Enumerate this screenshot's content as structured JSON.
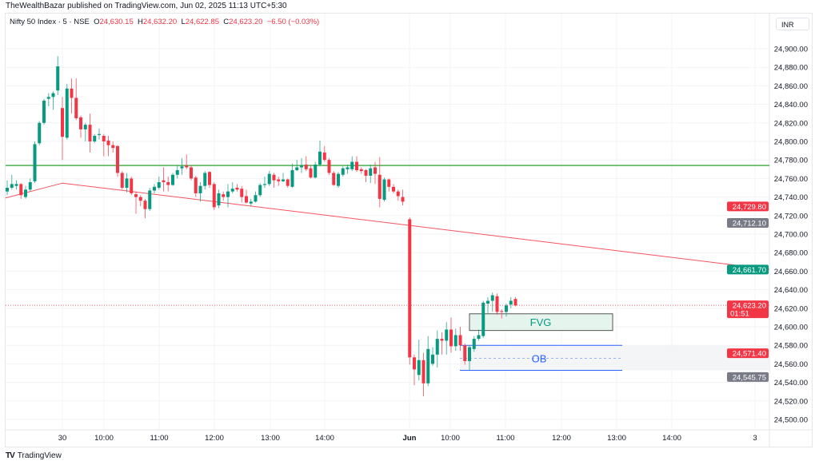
{
  "header": {
    "published": "TheWealthBazar published on TradingView.com, Jun 02, 2025 11:13 UTC+5:30"
  },
  "legend": {
    "symbol": "Nifty 50 Index · 5 · NSE",
    "o_label": "O",
    "o": "24,630.15",
    "h_label": "H",
    "h": "24,632.20",
    "l_label": "L",
    "l": "24,622.85",
    "c_label": "C",
    "c": "24,623.20",
    "change": "−6.50 (−0.03%)"
  },
  "currency": "INR",
  "footer": {
    "brand": "TradingView",
    "logo": "TV"
  },
  "colors": {
    "up": "#089981",
    "down": "#f23645",
    "support_line": "#4caf50",
    "trend_line": "#f7525f",
    "ob": "#2962ff",
    "fvg_text": "#089981"
  },
  "chart_data": {
    "type": "candlestick",
    "title": "Nifty 50 Index · 5 · NSE",
    "ylim": [
      24490,
      24915
    ],
    "y_ticks": [
      "24,500.00",
      "24,520.00",
      "24,540.00",
      "24,560.00",
      "24,580.00",
      "24,600.00",
      "24,620.00",
      "24,640.00",
      "24,660.00",
      "24,680.00",
      "24,700.00",
      "24,720.00",
      "24,740.00",
      "24,760.00",
      "24,780.00",
      "24,800.00",
      "24,820.00",
      "24,840.00",
      "24,860.00",
      "24,880.00",
      "24,900.00"
    ],
    "x_ticks": [
      "30",
      "10:00",
      "11:00",
      "12:00",
      "13:00",
      "14:00",
      "Jun",
      "10:00",
      "11:00",
      "12:00",
      "13:00",
      "14:00",
      "3"
    ],
    "grid": true,
    "candles_ohlc": [
      [
        24746,
        24758,
        24742,
        24750
      ],
      [
        24750,
        24764,
        24748,
        24754
      ],
      [
        24752,
        24758,
        24748,
        24754
      ],
      [
        24754,
        24755,
        24738,
        24742
      ],
      [
        24740,
        24752,
        24738,
        24748
      ],
      [
        24748,
        24760,
        24746,
        24756
      ],
      [
        24757,
        24800,
        24755,
        24797
      ],
      [
        24798,
        24822,
        24796,
        24820
      ],
      [
        24820,
        24846,
        24818,
        24844
      ],
      [
        24846,
        24852,
        24838,
        24848
      ],
      [
        24848,
        24854,
        24834,
        24852
      ],
      [
        24855,
        24892,
        24850,
        24881
      ],
      [
        24836,
        24848,
        24780,
        24805
      ],
      [
        24804,
        24862,
        24802,
        24857
      ],
      [
        24857,
        24868,
        24830,
        24847
      ],
      [
        24847,
        24868,
        24823,
        24825
      ],
      [
        24826,
        24828,
        24804,
        24813
      ],
      [
        24813,
        24820,
        24800,
        24818
      ],
      [
        24818,
        24830,
        24788,
        24800
      ],
      [
        24800,
        24808,
        24798,
        24806
      ],
      [
        24807,
        24814,
        24802,
        24808
      ],
      [
        24806,
        24808,
        24784,
        24800
      ],
      [
        24801,
        24806,
        24784,
        24796
      ],
      [
        24796,
        24800,
        24788,
        24793
      ],
      [
        24795,
        24796,
        24762,
        24766
      ],
      [
        24766,
        24768,
        24748,
        24750
      ],
      [
        24750,
        24766,
        24745,
        24760
      ],
      [
        24760,
        24762,
        24742,
        24744
      ],
      [
        24743,
        24746,
        24722,
        24740
      ],
      [
        24740,
        24742,
        24730,
        24736
      ],
      [
        24736,
        24738,
        24717,
        24727
      ],
      [
        24727,
        24750,
        24725,
        24747
      ],
      [
        24747,
        24754,
        24744,
        24751
      ],
      [
        24750,
        24762,
        24748,
        24756
      ],
      [
        24758,
        24772,
        24746,
        24756
      ],
      [
        24756,
        24762,
        24746,
        24753
      ],
      [
        24753,
        24766,
        24752,
        24764
      ],
      [
        24764,
        24774,
        24760,
        24769
      ],
      [
        24771,
        24782,
        24764,
        24773
      ],
      [
        24774,
        24786,
        24770,
        24772
      ],
      [
        24772,
        24774,
        24758,
        24760
      ],
      [
        24761,
        24763,
        24740,
        24744
      ],
      [
        24744,
        24756,
        24735,
        24752
      ],
      [
        24752,
        24768,
        24748,
        24766
      ],
      [
        24767,
        24768,
        24750,
        24753
      ],
      [
        24754,
        24756,
        24726,
        24729
      ],
      [
        24731,
        24748,
        24728,
        24744
      ],
      [
        24743,
        24746,
        24736,
        24740
      ],
      [
        24740,
        24754,
        24729,
        24746
      ],
      [
        24746,
        24756,
        24744,
        24749
      ],
      [
        24750,
        24754,
        24746,
        24748
      ],
      [
        24749,
        24752,
        24734,
        24740
      ],
      [
        24741,
        24748,
        24733,
        24734
      ],
      [
        24733,
        24738,
        24730,
        24735
      ],
      [
        24735,
        24746,
        24734,
        24742
      ],
      [
        24742,
        24755,
        24740,
        24753
      ],
      [
        24753,
        24762,
        24750,
        24754
      ],
      [
        24754,
        24768,
        24752,
        24765
      ],
      [
        24764,
        24766,
        24750,
        24758
      ],
      [
        24759,
        24762,
        24752,
        24757
      ],
      [
        24757,
        24766,
        24756,
        24759
      ],
      [
        24759,
        24760,
        24750,
        24752
      ],
      [
        24751,
        24776,
        24750,
        24769
      ],
      [
        24769,
        24780,
        24768,
        24772
      ],
      [
        24772,
        24782,
        24766,
        24774
      ],
      [
        24775,
        24784,
        24768,
        24770
      ],
      [
        24771,
        24774,
        24760,
        24761
      ],
      [
        24761,
        24778,
        24760,
        24775
      ],
      [
        24775,
        24801,
        24773,
        24789
      ],
      [
        24788,
        24795,
        24778,
        24780
      ],
      [
        24780,
        24782,
        24764,
        24766
      ],
      [
        24766,
        24768,
        24752,
        24753
      ],
      [
        24752,
        24767,
        24750,
        24765
      ],
      [
        24764,
        24773,
        24762,
        24771
      ],
      [
        24770,
        24775,
        24765,
        24772
      ],
      [
        24770,
        24784,
        24768,
        24778
      ],
      [
        24778,
        24784,
        24767,
        24769
      ],
      [
        24770,
        24772,
        24765,
        24768
      ],
      [
        24769,
        24770,
        24756,
        24763
      ],
      [
        24763,
        24775,
        24755,
        24771
      ],
      [
        24772,
        24778,
        24754,
        24765
      ],
      [
        24764,
        24783,
        24729,
        24738
      ],
      [
        24737,
        24761,
        24735,
        24759
      ],
      [
        24759,
        24760,
        24746,
        24751
      ],
      [
        24751,
        24754,
        24744,
        24746
      ],
      [
        24746,
        24748,
        24736,
        24741
      ],
      [
        24740,
        24748,
        24731,
        24735
      ],
      [
        24716,
        24718,
        24559,
        24567
      ],
      [
        24567,
        24570,
        24537,
        24554
      ],
      [
        24548,
        24586,
        24542,
        24564
      ],
      [
        24564,
        24572,
        24525,
        24539
      ],
      [
        24539,
        24590,
        24536,
        24576
      ],
      [
        24560,
        24578,
        24558,
        24570
      ],
      [
        24570,
        24596,
        24556,
        24587
      ],
      [
        24587,
        24594,
        24570,
        24585
      ],
      [
        24585,
        24605,
        24570,
        24597
      ],
      [
        24597,
        24610,
        24572,
        24579
      ],
      [
        24579,
        24598,
        24574,
        24591
      ],
      [
        24591,
        24600,
        24574,
        24580
      ],
      [
        24580,
        24582,
        24559,
        24563
      ],
      [
        24563,
        24580,
        24553,
        24578
      ],
      [
        24576,
        24590,
        24573,
        24587
      ],
      [
        24587,
        24597,
        24585,
        24591
      ],
      [
        24590,
        24628,
        24588,
        24626
      ],
      [
        24625,
        24632,
        24614,
        24628
      ],
      [
        24628,
        24637,
        24616,
        24634
      ],
      [
        24633,
        24636,
        24613,
        24616
      ],
      [
        24617,
        24619,
        24609,
        24616
      ],
      [
        24616,
        24625,
        24611,
        24623
      ],
      [
        24624,
        24632,
        24620,
        24628
      ],
      [
        24630,
        24632,
        24622,
        24623
      ]
    ],
    "horizontal_line": 24774,
    "trend_line_prices": [
      24739,
      24755,
      24662
    ],
    "current_price_line": 24623.2,
    "zones": [
      {
        "label": "FVG",
        "top": 24614,
        "bottom": 24596
      },
      {
        "label": "OB",
        "top": 24580,
        "bottom": 24553,
        "mid": 24566
      }
    ],
    "price_badges": [
      {
        "value": "24,729.80",
        "price": 24729.8,
        "color": "#f23645"
      },
      {
        "value": "24,712.10",
        "price": 24712.1,
        "color": "#787b86"
      },
      {
        "value": "24,661.70",
        "price": 24661.7,
        "color": "#089981"
      },
      {
        "value": "24,623.20",
        "sub": "01:51",
        "price": 24623.2,
        "color": "#f23645"
      },
      {
        "value": "24,571.40",
        "price": 24571.4,
        "color": "#f23645"
      },
      {
        "value": "24,545.75",
        "price": 24545.75,
        "color": "#787b86"
      }
    ]
  }
}
